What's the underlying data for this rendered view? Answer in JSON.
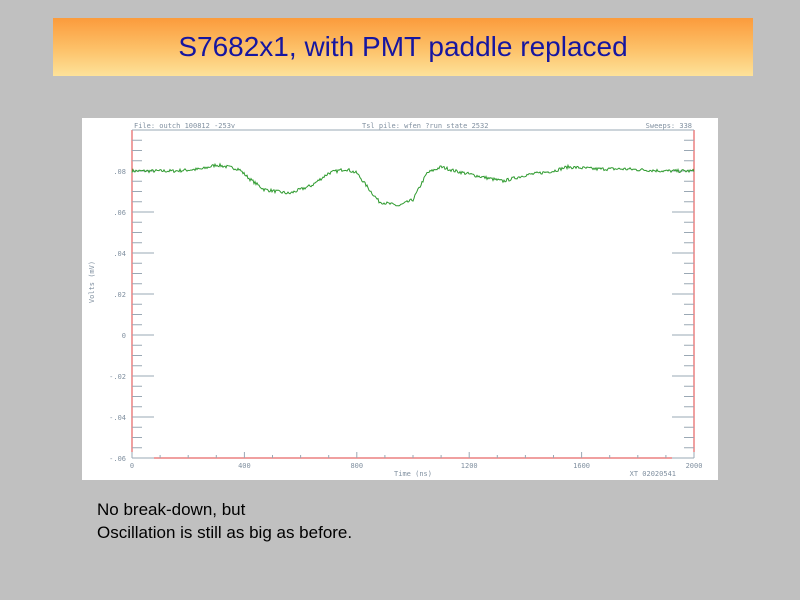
{
  "slide": {
    "title": "S7682x1, with PMT paddle replaced",
    "caption_lines": [
      "No break-down, but",
      "Oscillation is still as big as before."
    ]
  },
  "colors": {
    "background": "#c0c0c0",
    "title_text": "#1616a0",
    "trace": "#2e9a2e",
    "frame": "#e04040",
    "header_text": "#8090a0",
    "ticks": "#9aa8b4"
  },
  "chart_data": {
    "type": "line",
    "header_left": "File: outch 100812 -253v",
    "header_center": "Tsl pile: wfen ?run state 2532",
    "header_right": "Sweeps: 338",
    "footer_right": "XT 02020541",
    "xlabel": "Time (ns)",
    "ylabel": "Volts (mV)",
    "xlim": [
      0,
      2000
    ],
    "ylim": [
      -0.06,
      0.1
    ],
    "x_ticks": [
      "0",
      "400",
      "800",
      "1200",
      "1600",
      "2000"
    ],
    "y_ticks": [
      ".08",
      ".06",
      ".04",
      ".02",
      "0",
      "-.02",
      "-.04",
      "-.06"
    ],
    "series": [
      {
        "x": [
          0,
          150,
          250,
          300,
          380,
          420,
          470,
          560,
          640,
          700,
          760,
          800,
          850,
          880,
          950,
          1000,
          1050,
          1100,
          1150,
          1250,
          1320,
          1400,
          1500,
          1550,
          1650,
          1750,
          1900,
          2000
        ],
        "y": [
          0.08,
          0.08,
          0.081,
          0.083,
          0.081,
          0.076,
          0.071,
          0.069,
          0.073,
          0.079,
          0.081,
          0.079,
          0.07,
          0.065,
          0.063,
          0.066,
          0.079,
          0.082,
          0.08,
          0.077,
          0.075,
          0.078,
          0.08,
          0.082,
          0.081,
          0.081,
          0.08,
          0.08
        ]
      }
    ]
  }
}
